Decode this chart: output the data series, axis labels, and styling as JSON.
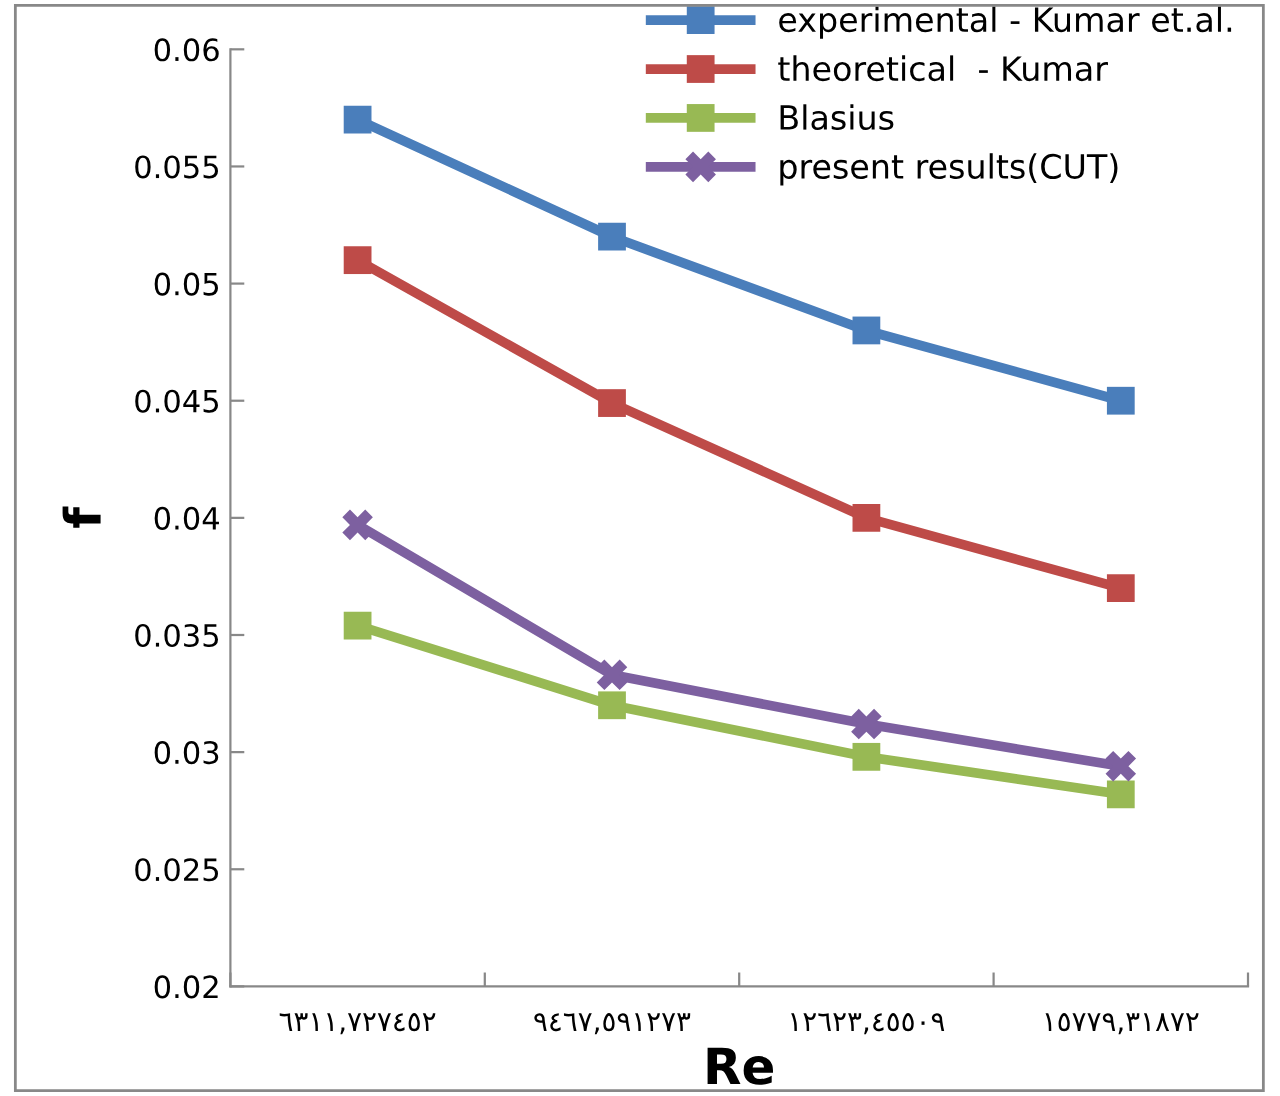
{
  "chart_data": {
    "type": "line",
    "xlabel": "Re",
    "ylabel": "f",
    "categories": [
      "٦٣١١,٧٢٧٤٥٢",
      "٩٤٦٧,٥٩١٢٧٣",
      "١٢٦٢٣,٤٥٥٠٩",
      "١٥٧٧٩,٣١٨٧٢"
    ],
    "series": [
      {
        "name": "experimental - Kumar et.al.",
        "color": "#4a7ebb",
        "marker": "square",
        "values": [
          0.057,
          0.052,
          0.048,
          0.045
        ]
      },
      {
        "name": "theoretical  - Kumar",
        "color": "#be4b48",
        "marker": "square",
        "values": [
          0.051,
          0.0449,
          0.04,
          0.037
        ]
      },
      {
        "name": "Blasius",
        "color": "#98b954",
        "marker": "square",
        "values": [
          0.0354,
          0.032,
          0.0298,
          0.0282
        ]
      },
      {
        "name": "present results(CUT)",
        "color": "#7d60a0",
        "marker": "cross",
        "values": [
          0.0397,
          0.0333,
          0.0312,
          0.0294
        ]
      }
    ],
    "ylim": [
      0.02,
      0.06
    ],
    "yticks": [
      0.02,
      0.025,
      0.03,
      0.035,
      0.04,
      0.045,
      0.05,
      0.055,
      0.06
    ],
    "grid": false,
    "legend": "top right",
    "line_style": "solid"
  }
}
